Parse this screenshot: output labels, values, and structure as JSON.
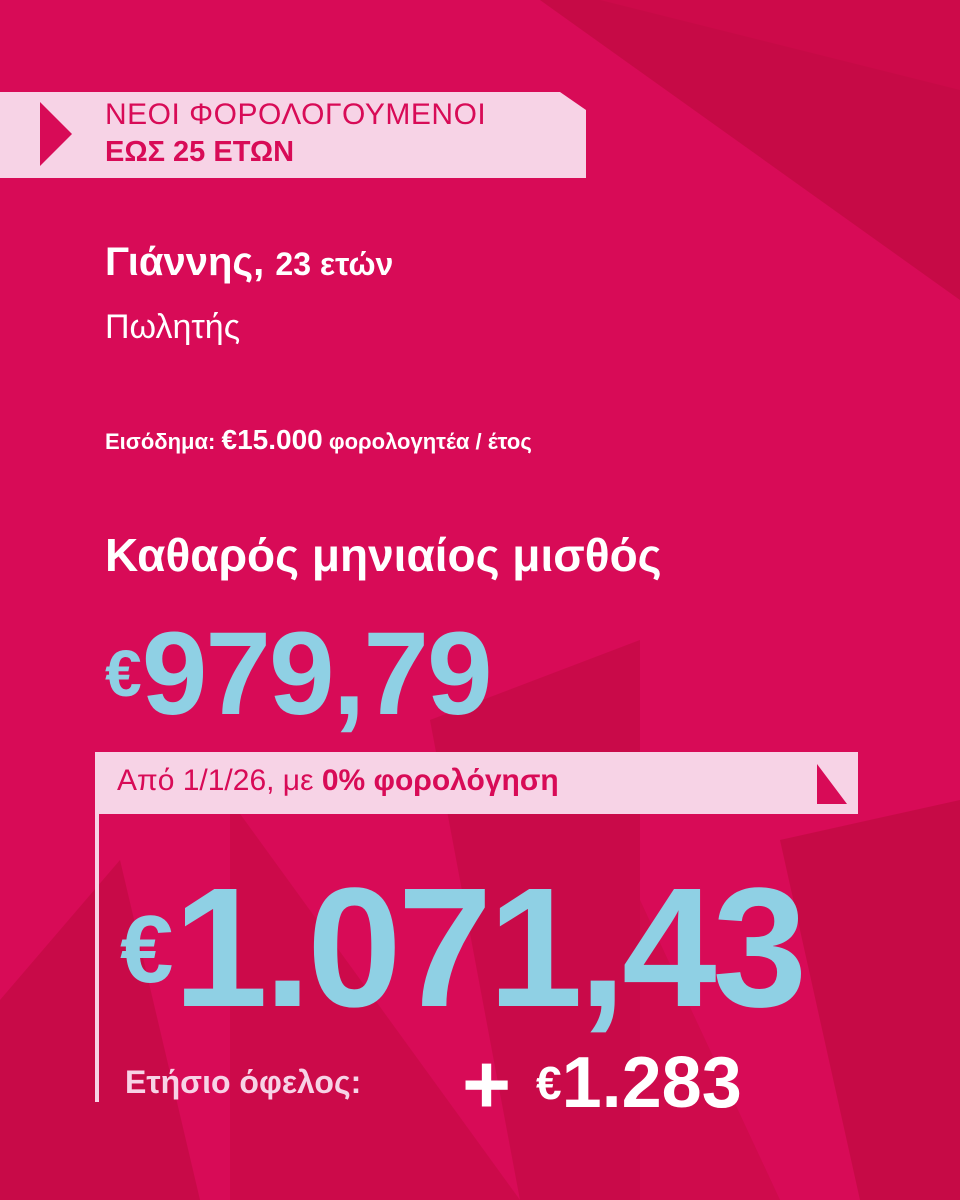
{
  "colors": {
    "background": "#d80b57",
    "accent_blue": "#8fd0e4",
    "light_pink": "#f7d3e6",
    "shade": "#c60a46"
  },
  "banner": {
    "line1": "ΝΕΟΙ ΦΟΡΟΛΟΓΟΥΜΕΝΟΙ",
    "line2": "ΕΩΣ 25 ΕΤΩΝ",
    "icon": "play-triangle-icon"
  },
  "person": {
    "name": "Γιάννης,",
    "age": "23 ετών",
    "job": "Πωλητής"
  },
  "income": {
    "label": "Εισόδημα:",
    "amount": "€15.000",
    "suffix": "φορολογητέα / έτος"
  },
  "current": {
    "title": "Καθαρός μηνιαίος μισθός",
    "currency": "€",
    "amount": "979,79"
  },
  "future": {
    "prefix": "Από 1/1/26, με",
    "highlight": "0% φορολόγηση",
    "currency": "€",
    "amount": "1.071,43",
    "icon": "corner-triangle-icon"
  },
  "benefit": {
    "label": "Ετήσιο όφελος:",
    "plus": "+",
    "currency": "€",
    "amount": "1.283"
  }
}
